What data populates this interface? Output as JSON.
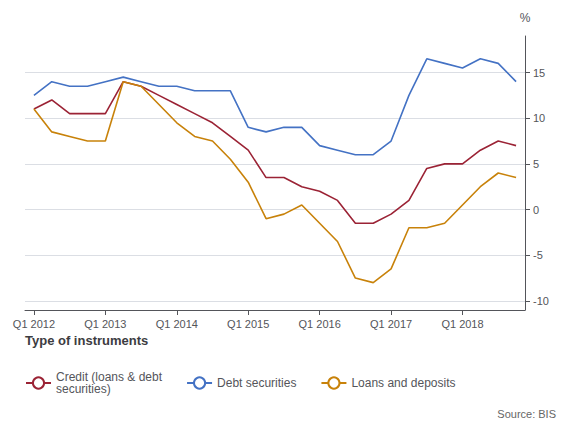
{
  "chart_data": {
    "type": "line",
    "categories": [
      "Q1 2012",
      null,
      null,
      null,
      "Q1 2013",
      null,
      null,
      null,
      "Q1 2014",
      null,
      null,
      null,
      "Q1 2015",
      null,
      null,
      null,
      "Q1 2016",
      null,
      null,
      null,
      "Q1 2017",
      null,
      null,
      null,
      "Q1 2018",
      null,
      null,
      null
    ],
    "series": [
      {
        "name": "Credit (loans & debt\nsecurities)",
        "color": "#9b2335",
        "values": [
          11.0,
          12.0,
          10.5,
          10.5,
          10.5,
          14.0,
          13.5,
          12.5,
          11.5,
          10.5,
          9.5,
          8.0,
          6.5,
          3.5,
          3.5,
          2.5,
          2.0,
          1.0,
          -1.5,
          -1.5,
          -0.5,
          1.0,
          4.5,
          5.0,
          5.0,
          6.5,
          7.5,
          7.0
        ]
      },
      {
        "name": "Debt securities",
        "color": "#4472c4",
        "values": [
          12.5,
          14.0,
          13.5,
          13.5,
          14.0,
          14.5,
          14.0,
          13.5,
          13.5,
          13.0,
          13.0,
          13.0,
          9.0,
          8.5,
          9.0,
          9.0,
          7.0,
          6.5,
          6.0,
          6.0,
          7.5,
          12.5,
          16.5,
          16.0,
          15.5,
          16.5,
          16.0,
          14.0
        ]
      },
      {
        "name": "Loans and deposits",
        "color": "#c8820a",
        "values": [
          11.0,
          8.5,
          8.0,
          7.5,
          7.5,
          14.0,
          13.5,
          11.5,
          9.5,
          8.0,
          7.5,
          5.5,
          3.0,
          -1.0,
          -0.5,
          0.5,
          -1.5,
          -3.5,
          -7.5,
          -8.0,
          -6.5,
          -2.0,
          -2.0,
          -1.5,
          0.5,
          2.5,
          4.0,
          3.5
        ]
      }
    ],
    "ylim": [
      -11,
      19
    ],
    "yticks": [
      -10,
      -5,
      0,
      5,
      10,
      15
    ],
    "ylabel": "%",
    "legend_title": "Type of instruments",
    "annotations": [
      "Source: BIS"
    ],
    "grid": true,
    "legend": "bottom"
  }
}
